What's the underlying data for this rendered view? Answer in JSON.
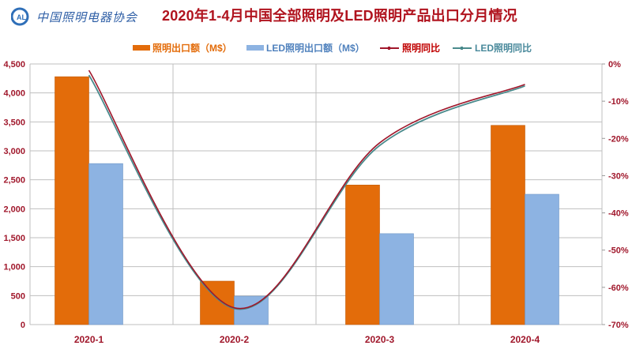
{
  "header": {
    "logo_abbr": "CALI",
    "logo_text": "中国照明电器协会",
    "title": "2020年1-4月中国全部照明及LED照明产品出口分月情况"
  },
  "legend": [
    {
      "label": "照明出口额（M$）",
      "type": "bar",
      "color": "#e36c0a",
      "text_color": "#e36c0a"
    },
    {
      "label": "LED照明出口额（M$）",
      "type": "bar",
      "color": "#8db3e2",
      "text_color": "#4f81bd"
    },
    {
      "label": "照明同比",
      "type": "line",
      "color": "#a0172b",
      "text_color": "#c00000"
    },
    {
      "label": "LED照明同比",
      "type": "line",
      "color": "#4a8a8c",
      "text_color": "#4a8a9c"
    }
  ],
  "axes": {
    "left_ticks": [
      "4,500",
      "4,000",
      "3,500",
      "3,000",
      "2,500",
      "2,000",
      "1,500",
      "1,000",
      "500",
      "0"
    ],
    "right_ticks": [
      "0%",
      "-10%",
      "-20%",
      "-30%",
      "-40%",
      "-50%",
      "-60%",
      "-70%"
    ],
    "categories": [
      "2020-1",
      "2020-2",
      "2020-3",
      "2020-4"
    ]
  },
  "colors": {
    "axis_text": "#a0172b",
    "grid": "#bfbfbf",
    "bar_lighting": "#e36c0a",
    "bar_led": "#8db3e2",
    "line_lighting": "#a0172b",
    "line_led": "#4a8a8c"
  },
  "chart_data": {
    "type": "bar",
    "title": "2020年1-4月中国全部照明及LED照明产品出口分月情况",
    "categories": [
      "2020-1",
      "2020-2",
      "2020-3",
      "2020-4"
    ],
    "series": [
      {
        "name": "照明出口额（M$）",
        "type": "bar",
        "axis": "left",
        "values": [
          4280,
          750,
          2410,
          3440
        ]
      },
      {
        "name": "LED照明出口额（M$）",
        "type": "bar",
        "axis": "left",
        "values": [
          2780,
          490,
          1570,
          2250
        ]
      },
      {
        "name": "照明同比",
        "type": "line",
        "axis": "right",
        "values": [
          -1.7,
          -65.5,
          -21.2,
          -5.5
        ],
        "unit": "%"
      },
      {
        "name": "LED照明同比",
        "type": "line",
        "axis": "right",
        "values": [
          -3.0,
          -65.7,
          -21.9,
          -5.9
        ],
        "unit": "%"
      }
    ],
    "xlabel": "",
    "ylabel": "",
    "ylim": [
      0,
      4500
    ],
    "y2lim": [
      -70,
      0
    ],
    "grid": true,
    "legend_position": "top"
  }
}
